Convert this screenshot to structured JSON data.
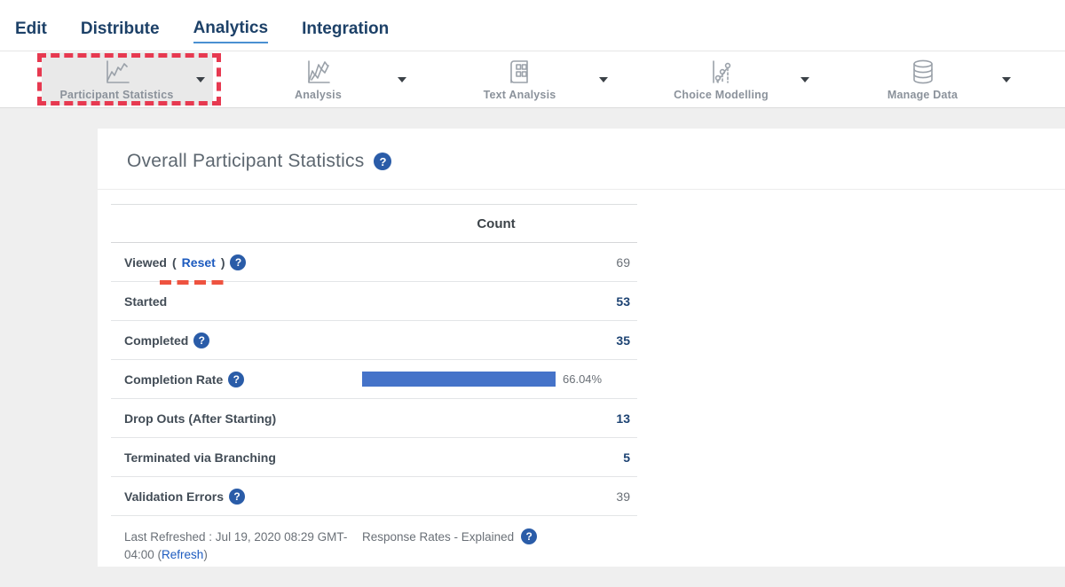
{
  "nav": {
    "items": [
      {
        "label": "Edit",
        "active": false
      },
      {
        "label": "Distribute",
        "active": false
      },
      {
        "label": "Analytics",
        "active": true
      },
      {
        "label": "Integration",
        "active": false
      }
    ]
  },
  "toolbar": {
    "items": [
      {
        "label": "Participant Statistics",
        "icon": "line-chart-icon",
        "selected": true,
        "annotated": true
      },
      {
        "label": "Analysis",
        "icon": "multi-line-chart-icon",
        "selected": false,
        "annotated": false
      },
      {
        "label": "Text Analysis",
        "icon": "document-grid-icon",
        "selected": false,
        "annotated": false
      },
      {
        "label": "Choice Modelling",
        "icon": "scatter-model-icon",
        "selected": false,
        "annotated": false
      },
      {
        "label": "Manage Data",
        "icon": "database-icon",
        "selected": false,
        "annotated": false
      }
    ]
  },
  "page": {
    "title": "Overall Participant Statistics"
  },
  "table": {
    "count_header": "Count",
    "rows": [
      {
        "label": "Viewed",
        "link": "Reset",
        "has_help": true,
        "value": "69",
        "value_style": "muted",
        "annotated": true
      },
      {
        "label": "Started",
        "value": "53",
        "value_style": "accent"
      },
      {
        "label": "Completed",
        "has_help": true,
        "value": "35",
        "value_style": "accent"
      },
      {
        "label": "Completion Rate",
        "has_help": true,
        "type": "progress",
        "percent": 66.04,
        "percent_label": "66.04%"
      },
      {
        "label": "Drop Outs (After Starting)",
        "value": "13",
        "value_style": "accent"
      },
      {
        "label": "Terminated via Branching",
        "value": "5",
        "value_style": "accent"
      },
      {
        "label": "Validation Errors",
        "has_help": true,
        "value": "39",
        "value_style": "muted"
      }
    ],
    "footer": {
      "last_refreshed_prefix": "Last Refreshed : Jul 19, 2020 08:29 GMT-04:00 (",
      "refresh_link": "Refresh",
      "last_refreshed_suffix": ")",
      "response_rates_label": "Response Rates - Explained"
    }
  },
  "colors": {
    "nav_blue": "#1d4168",
    "nav_underline": "#4a90d2",
    "link_blue": "#1d5bbf",
    "accent_value": "#1d4373",
    "bar_blue": "#4573c9",
    "annotation_red": "#e73950",
    "underline_red": "#ee5340",
    "help_blue": "#2a5ca8",
    "page_bg": "#efefef"
  }
}
